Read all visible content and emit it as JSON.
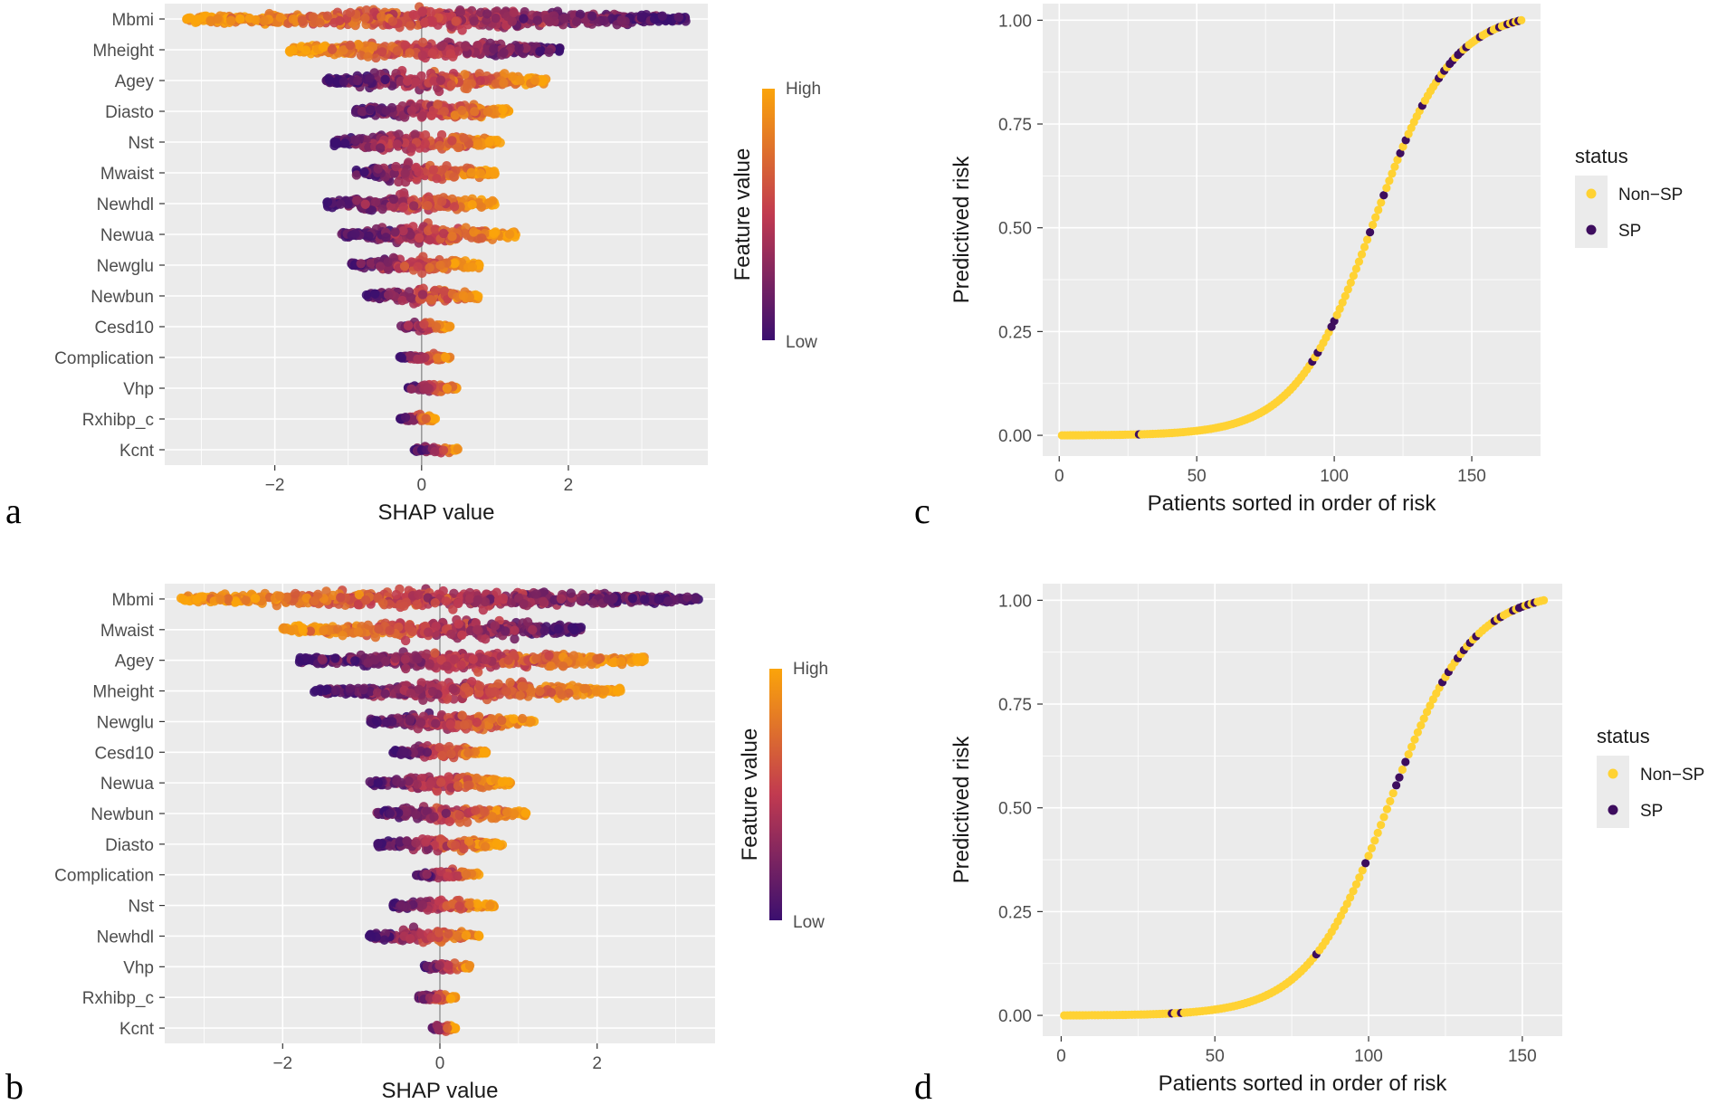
{
  "colors": {
    "panel_bg": "#ebebeb",
    "grid": "#ffffff",
    "low": "#3b0f6f",
    "mid": "#c13a50",
    "high": "#fba40a",
    "sp": "#3d0d5e",
    "nonsp": "#ffd233"
  },
  "chart_data": [
    {
      "panel": "a",
      "type": "scatter",
      "subtype": "shap-beeswarm",
      "xlabel": "SHAP value",
      "xlim": [
        -3.5,
        3.9
      ],
      "xticks": [
        -2,
        0,
        2
      ],
      "xtick_labels": [
        "−2",
        "0",
        "2"
      ],
      "colorbar": {
        "title": "Feature value",
        "high": "High",
        "low": "Low"
      },
      "features": [
        {
          "name": "Mbmi",
          "min": -3.2,
          "max": 3.6
        },
        {
          "name": "Mheight",
          "min": -1.8,
          "max": 1.9
        },
        {
          "name": "Agey",
          "min": -1.3,
          "max": 1.7
        },
        {
          "name": "Diasto",
          "min": -0.9,
          "max": 1.2
        },
        {
          "name": "Nst",
          "min": -1.2,
          "max": 1.1
        },
        {
          "name": "Mwaist",
          "min": -0.9,
          "max": 1.0
        },
        {
          "name": "Newhdl",
          "min": -1.3,
          "max": 1.0
        },
        {
          "name": "Newua",
          "min": -1.1,
          "max": 1.3
        },
        {
          "name": "Newglu",
          "min": -1.0,
          "max": 0.8
        },
        {
          "name": "Newbun",
          "min": -0.8,
          "max": 0.8
        },
        {
          "name": "Cesd10",
          "min": -0.3,
          "max": 0.4
        },
        {
          "name": "Complication",
          "min": -0.3,
          "max": 0.4
        },
        {
          "name": "Vhp",
          "min": -0.2,
          "max": 0.5
        },
        {
          "name": "Rxhibp_c",
          "min": -0.3,
          "max": 0.2
        },
        {
          "name": "Kcnt",
          "min": -0.1,
          "max": 0.5
        }
      ]
    },
    {
      "panel": "b",
      "type": "scatter",
      "subtype": "shap-beeswarm",
      "xlabel": "SHAP value",
      "xlim": [
        -3.5,
        3.5
      ],
      "xticks": [
        -2,
        0,
        2
      ],
      "xtick_labels": [
        "−2",
        "0",
        "2"
      ],
      "colorbar": {
        "title": "Feature value",
        "high": "High",
        "low": "Low"
      },
      "features": [
        {
          "name": "Mbmi",
          "min": -3.3,
          "max": 3.3
        },
        {
          "name": "Mwaist",
          "min": -2.0,
          "max": 1.8
        },
        {
          "name": "Agey",
          "min": -1.8,
          "max": 2.6
        },
        {
          "name": "Mheight",
          "min": -1.6,
          "max": 2.3
        },
        {
          "name": "Newglu",
          "min": -0.9,
          "max": 1.2
        },
        {
          "name": "Cesd10",
          "min": -0.6,
          "max": 0.6
        },
        {
          "name": "Newua",
          "min": -0.9,
          "max": 0.9
        },
        {
          "name": "Newbun",
          "min": -0.8,
          "max": 1.1
        },
        {
          "name": "Diasto",
          "min": -0.8,
          "max": 0.8
        },
        {
          "name": "Complication",
          "min": -0.3,
          "max": 0.5
        },
        {
          "name": "Nst",
          "min": -0.6,
          "max": 0.7
        },
        {
          "name": "Newhdl",
          "min": -0.9,
          "max": 0.5
        },
        {
          "name": "Vhp",
          "min": -0.2,
          "max": 0.4
        },
        {
          "name": "Rxhibp_c",
          "min": -0.3,
          "max": 0.2
        },
        {
          "name": "Kcnt",
          "min": -0.1,
          "max": 0.2
        }
      ]
    },
    {
      "panel": "c",
      "type": "scatter",
      "xlabel": "Patients sorted in order of risk",
      "ylabel": "Predictived risk",
      "xlim": [
        -6,
        175
      ],
      "ylim": [
        -0.05,
        1.04
      ],
      "xticks": [
        0,
        50,
        100,
        150
      ],
      "yticks": [
        0.0,
        0.25,
        0.5,
        0.75,
        1.0
      ],
      "ytick_labels": [
        "0.00",
        "0.25",
        "0.50",
        "0.75",
        "1.00"
      ],
      "n": 168,
      "legend": {
        "title": "status",
        "items": [
          "Non−SP",
          "SP"
        ],
        "position": "right"
      },
      "sp_indices": [
        29,
        92,
        94,
        99,
        100,
        113,
        118,
        124,
        126,
        132,
        138,
        140,
        142,
        143,
        145,
        146,
        148,
        153,
        157,
        160,
        163,
        165,
        167
      ]
    },
    {
      "panel": "d",
      "type": "scatter",
      "xlabel": "Patients sorted in order of risk",
      "ylabel": "Predictived risk",
      "xlim": [
        -6,
        163
      ],
      "ylim": [
        -0.05,
        1.04
      ],
      "xticks": [
        0,
        50,
        100,
        150
      ],
      "yticks": [
        0.0,
        0.25,
        0.5,
        0.75,
        1.0
      ],
      "ytick_labels": [
        "0.00",
        "0.25",
        "0.50",
        "0.75",
        "1.00"
      ],
      "n": 157,
      "legend": {
        "title": "status",
        "items": [
          "Non−SP",
          "SP"
        ],
        "position": "right"
      },
      "sp_indices": [
        36,
        39,
        83,
        99,
        109,
        110,
        112,
        124,
        126,
        129,
        131,
        133,
        135,
        141,
        143,
        147,
        149,
        150,
        152,
        154
      ]
    }
  ],
  "labels": {
    "a": "a",
    "b": "b",
    "c": "c",
    "d": "d"
  }
}
